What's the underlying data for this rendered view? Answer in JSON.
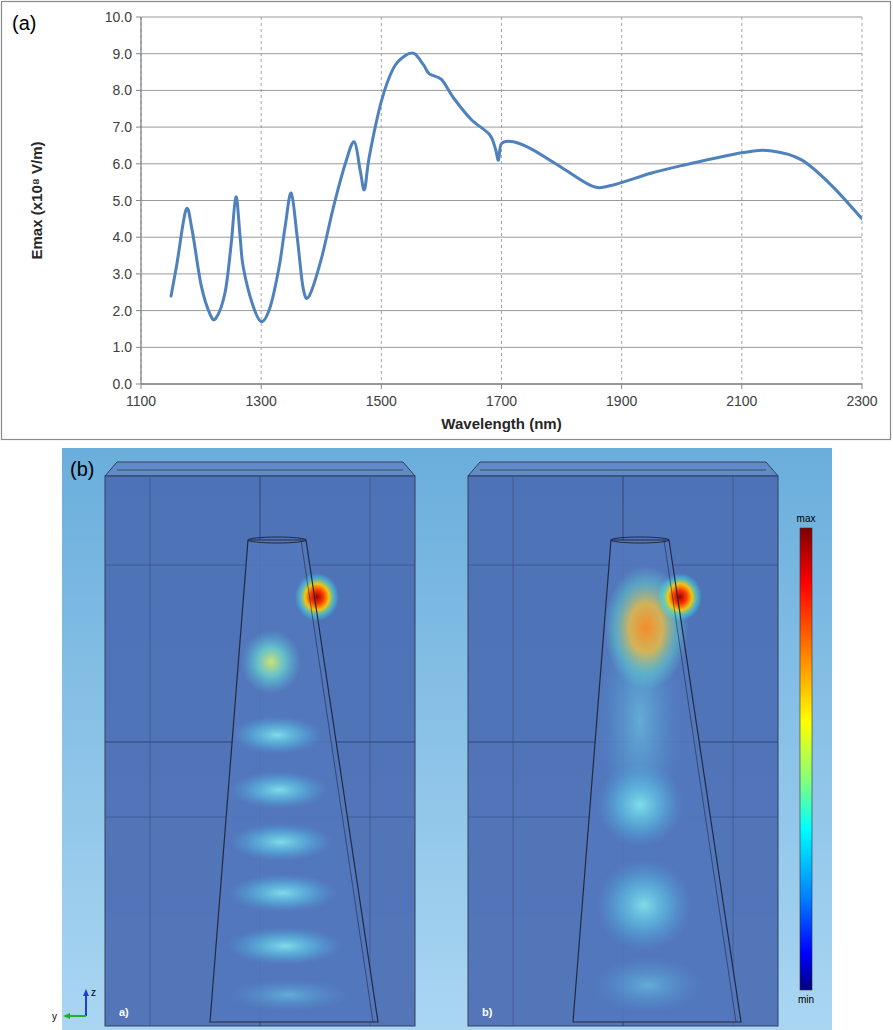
{
  "chart_data": {
    "type": "line",
    "title": "(a)",
    "x_label": "Wavelength (nm)",
    "y_label": "Emax (x10⁸ V/m)",
    "x": [
      1150,
      1160,
      1175,
      1185,
      1200,
      1215,
      1225,
      1240,
      1250,
      1258,
      1265,
      1270,
      1285,
      1300,
      1315,
      1330,
      1340,
      1350,
      1360,
      1370,
      1380,
      1400,
      1420,
      1440,
      1455,
      1465,
      1472,
      1480,
      1500,
      1520,
      1540,
      1555,
      1570,
      1580,
      1600,
      1620,
      1650,
      1680,
      1690,
      1695,
      1700,
      1720,
      1750,
      1800,
      1850,
      1880,
      1950,
      2000,
      2100,
      2150,
      2200,
      2250,
      2300
    ],
    "values": [
      2.4,
      3.3,
      4.75,
      4.2,
      2.7,
      1.9,
      1.8,
      2.5,
      3.8,
      5.1,
      4.0,
      3.2,
      2.2,
      1.7,
      2.1,
      3.2,
      4.3,
      5.2,
      4.0,
      2.6,
      2.4,
      3.4,
      4.8,
      6.0,
      6.6,
      5.8,
      5.3,
      6.2,
      7.7,
      8.6,
      8.95,
      9.0,
      8.7,
      8.45,
      8.3,
      7.8,
      7.2,
      6.8,
      6.4,
      6.1,
      6.55,
      6.6,
      6.4,
      5.9,
      5.4,
      5.4,
      5.75,
      5.95,
      6.3,
      6.35,
      6.1,
      5.4,
      4.5
    ],
    "color": "#4f81bd",
    "xlim": [
      1100,
      2300
    ],
    "xticks": [
      1100,
      1300,
      1500,
      1700,
      1900,
      2100,
      2300
    ],
    "ylim": [
      0,
      10
    ],
    "yticks": [
      {
        "value": 0,
        "label": "0.0"
      },
      {
        "value": 1,
        "label": "1.0"
      },
      {
        "value": 2,
        "label": "2.0"
      },
      {
        "value": 3,
        "label": "3.0"
      },
      {
        "value": 4,
        "label": "4.0"
      },
      {
        "value": 5,
        "label": "5.0"
      },
      {
        "value": 6,
        "label": "6.0"
      },
      {
        "value": 7,
        "label": "7.0"
      },
      {
        "value": 8,
        "label": "8.0"
      },
      {
        "value": 9,
        "label": "9.0"
      },
      {
        "value": 10,
        "label": "10.0"
      }
    ],
    "grid": true
  },
  "figure_b": {
    "label": "(b)",
    "panels": [
      {
        "label": "a)"
      },
      {
        "label": "b)"
      }
    ],
    "colorbar": {
      "max": "max",
      "min": "min"
    },
    "axis_labels": {
      "z": "z",
      "y": "y"
    }
  }
}
